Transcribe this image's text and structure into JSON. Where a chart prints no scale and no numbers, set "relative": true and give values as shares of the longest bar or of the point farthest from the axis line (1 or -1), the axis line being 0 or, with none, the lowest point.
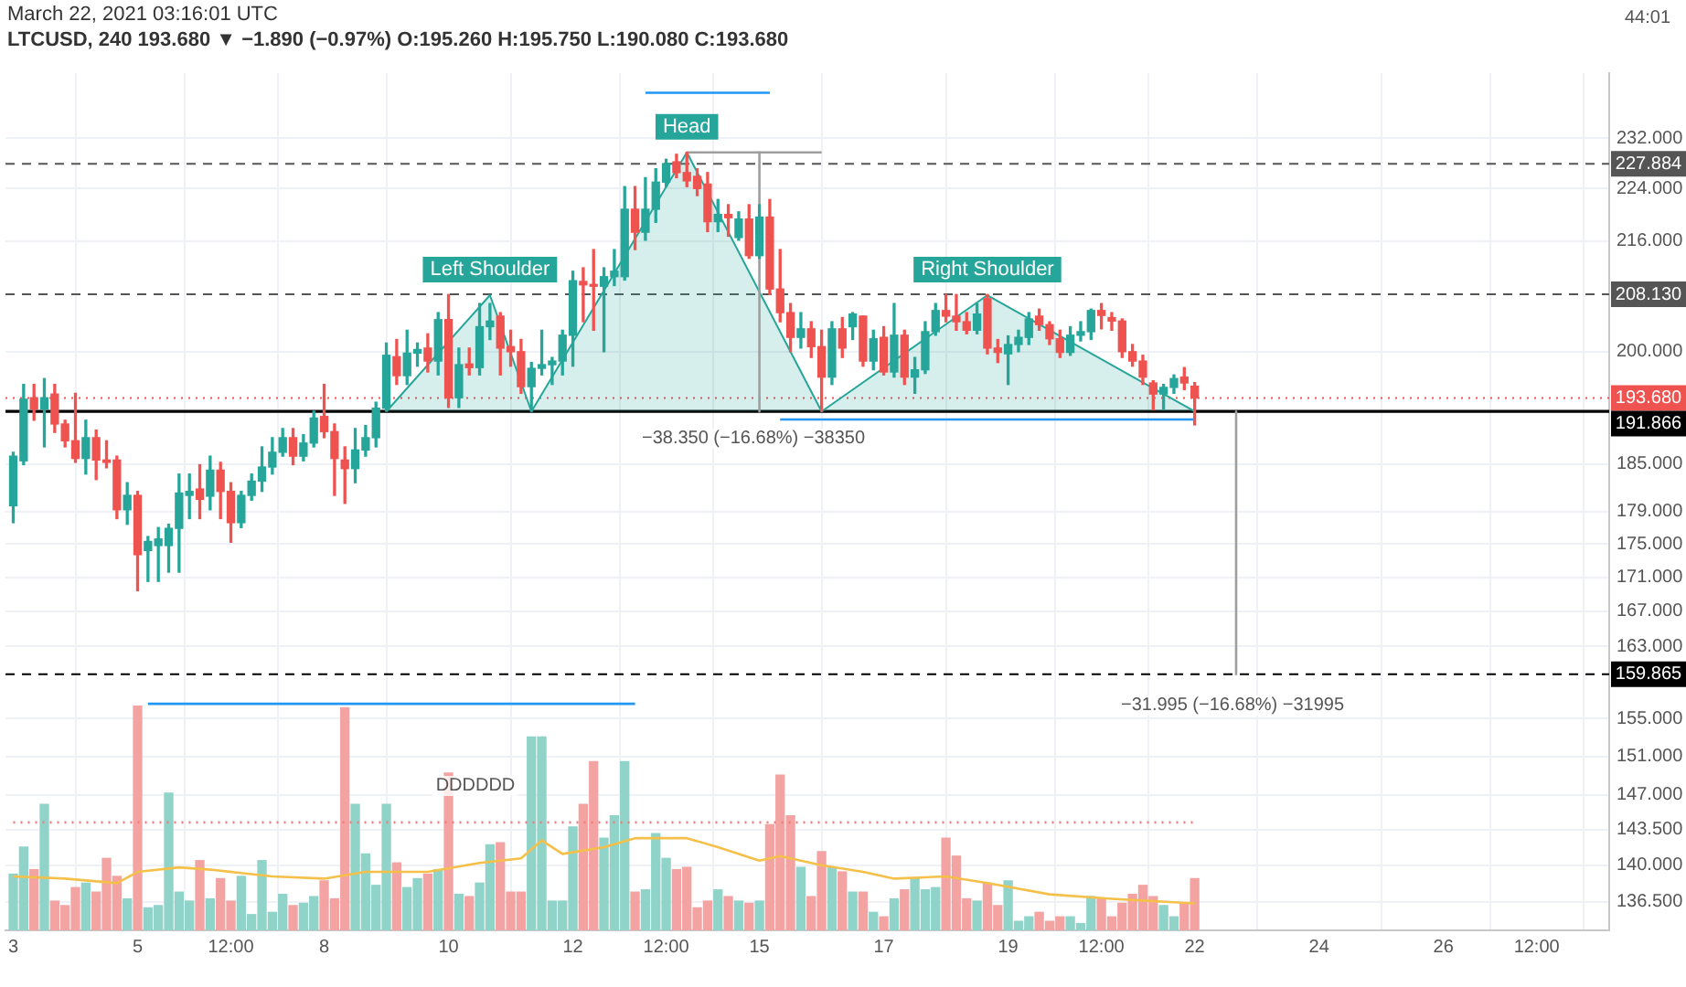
{
  "chart_data": [
    {
      "type": "candlestick",
      "title": "LTCUSD, 240 193.680 ▼ −1.890 (−0.97%) O:195.260 H:195.750 L:190.080 C:193.680",
      "subtitle": "March 22, 2021 03:16:01 UTC",
      "x": [
        "2021-03-03T00:00",
        "2021-03-03T04:00",
        "2021-03-03T08:00",
        "2021-03-03T12:00",
        "2021-03-03T16:00",
        "2021-03-03T20:00",
        "2021-03-04T00:00",
        "2021-03-04T04:00",
        "2021-03-04T08:00",
        "2021-03-04T12:00",
        "2021-03-04T16:00",
        "2021-03-04T20:00",
        "2021-03-05T00:00",
        "2021-03-05T04:00",
        "2021-03-05T08:00",
        "2021-03-05T12:00",
        "2021-03-05T16:00",
        "2021-03-05T20:00",
        "2021-03-06T00:00",
        "2021-03-06T04:00",
        "2021-03-06T08:00",
        "2021-03-06T12:00",
        "2021-03-06T16:00",
        "2021-03-06T20:00",
        "2021-03-07T00:00",
        "2021-03-07T04:00",
        "2021-03-07T08:00",
        "2021-03-07T12:00",
        "2021-03-07T16:00",
        "2021-03-07T20:00",
        "2021-03-08T00:00",
        "2021-03-08T04:00",
        "2021-03-08T08:00",
        "2021-03-08T12:00",
        "2021-03-08T16:00",
        "2021-03-08T20:00",
        "2021-03-09T00:00",
        "2021-03-09T04:00",
        "2021-03-09T08:00",
        "2021-03-09T12:00",
        "2021-03-09T16:00",
        "2021-03-09T20:00",
        "2021-03-10T00:00",
        "2021-03-10T04:00",
        "2021-03-10T08:00",
        "2021-03-10T12:00",
        "2021-03-10T16:00",
        "2021-03-10T20:00",
        "2021-03-11T00:00",
        "2021-03-11T04:00",
        "2021-03-11T08:00",
        "2021-03-11T12:00",
        "2021-03-11T16:00",
        "2021-03-11T20:00",
        "2021-03-12T00:00",
        "2021-03-12T04:00",
        "2021-03-12T08:00",
        "2021-03-12T12:00",
        "2021-03-12T16:00",
        "2021-03-12T20:00",
        "2021-03-13T00:00",
        "2021-03-13T04:00",
        "2021-03-13T08:00",
        "2021-03-13T12:00",
        "2021-03-13T16:00",
        "2021-03-13T20:00",
        "2021-03-14T00:00",
        "2021-03-14T04:00",
        "2021-03-14T08:00",
        "2021-03-14T12:00",
        "2021-03-14T16:00",
        "2021-03-14T20:00",
        "2021-03-15T00:00",
        "2021-03-15T04:00",
        "2021-03-15T08:00",
        "2021-03-15T12:00",
        "2021-03-15T16:00",
        "2021-03-15T20:00",
        "2021-03-16T00:00",
        "2021-03-16T04:00",
        "2021-03-16T08:00",
        "2021-03-16T12:00",
        "2021-03-16T16:00",
        "2021-03-16T20:00",
        "2021-03-17T00:00",
        "2021-03-17T04:00",
        "2021-03-17T08:00",
        "2021-03-17T12:00",
        "2021-03-17T16:00",
        "2021-03-17T20:00",
        "2021-03-18T00:00",
        "2021-03-18T04:00",
        "2021-03-18T08:00",
        "2021-03-18T12:00",
        "2021-03-18T16:00",
        "2021-03-18T20:00",
        "2021-03-19T00:00",
        "2021-03-19T04:00",
        "2021-03-19T08:00",
        "2021-03-19T12:00",
        "2021-03-19T16:00",
        "2021-03-19T20:00",
        "2021-03-20T00:00",
        "2021-03-20T04:00",
        "2021-03-20T08:00",
        "2021-03-20T12:00",
        "2021-03-20T16:00",
        "2021-03-20T20:00",
        "2021-03-21T00:00",
        "2021-03-21T04:00",
        "2021-03-21T08:00",
        "2021-03-21T12:00",
        "2021-03-21T16:00",
        "2021-03-21T20:00",
        "2021-03-22T00:00"
      ],
      "ohlc": [
        [
          179.7,
          186.5,
          177.6,
          186.0
        ],
        [
          185.4,
          195.5,
          184.9,
          193.5
        ],
        [
          193.7,
          195.5,
          190.7,
          192.2
        ],
        [
          192.2,
          196.3,
          187.2,
          193.7
        ],
        [
          194.2,
          195.5,
          189.1,
          190.2
        ],
        [
          190.2,
          190.7,
          187.2,
          188.0
        ],
        [
          188.0,
          194.3,
          185.2,
          185.7
        ],
        [
          185.7,
          190.7,
          183.7,
          188.4
        ],
        [
          188.4,
          189.4,
          183.0,
          185.5
        ],
        [
          185.5,
          188.0,
          184.5,
          185.2
        ],
        [
          185.5,
          186.0,
          178.1,
          179.2
        ],
        [
          179.2,
          182.6,
          177.4,
          181.0
        ],
        [
          181.0,
          181.5,
          169.4,
          173.7
        ],
        [
          174.2,
          175.9,
          170.5,
          175.3
        ],
        [
          174.8,
          177.0,
          170.5,
          175.6
        ],
        [
          174.8,
          177.4,
          171.6,
          176.9
        ],
        [
          176.9,
          183.7,
          171.6,
          181.3
        ],
        [
          181.0,
          183.7,
          178.1,
          181.5
        ],
        [
          181.8,
          184.9,
          178.1,
          180.5
        ],
        [
          180.9,
          186.0,
          179.2,
          184.2
        ],
        [
          184.2,
          185.2,
          178.1,
          181.5
        ],
        [
          181.5,
          182.6,
          175.2,
          177.6
        ],
        [
          177.6,
          181.5,
          177.0,
          181.0
        ],
        [
          181.0,
          183.7,
          180.4,
          182.8
        ],
        [
          182.8,
          187.2,
          181.5,
          184.6
        ],
        [
          184.6,
          188.4,
          183.7,
          186.5
        ],
        [
          186.5,
          189.6,
          186.0,
          188.4
        ],
        [
          188.4,
          189.6,
          184.9,
          186.0
        ],
        [
          186.0,
          188.8,
          185.4,
          187.7
        ],
        [
          187.7,
          191.9,
          187.2,
          191.0
        ],
        [
          191.2,
          195.5,
          188.4,
          189.2
        ],
        [
          189.2,
          190.2,
          181.0,
          185.7
        ],
        [
          185.5,
          187.2,
          180.0,
          184.4
        ],
        [
          184.4,
          189.6,
          182.6,
          186.8
        ],
        [
          186.8,
          190.0,
          186.0,
          188.4
        ],
        [
          188.4,
          193.1,
          187.2,
          192.3
        ],
        [
          192.3,
          201.2,
          191.9,
          199.5
        ],
        [
          199.3,
          201.7,
          195.5,
          196.7
        ],
        [
          196.7,
          203.0,
          195.5,
          199.8
        ],
        [
          199.8,
          201.2,
          198.0,
          200.3
        ],
        [
          200.5,
          202.5,
          197.2,
          198.7
        ],
        [
          198.7,
          205.5,
          196.8,
          204.5
        ],
        [
          204.5,
          208.1,
          192.4,
          193.7
        ],
        [
          193.7,
          200.5,
          192.4,
          198.2
        ],
        [
          198.3,
          200.5,
          196.8,
          197.8
        ],
        [
          197.8,
          206.8,
          196.8,
          203.5
        ],
        [
          203.5,
          206.8,
          201.7,
          204.3
        ],
        [
          205.0,
          205.5,
          196.8,
          200.5
        ],
        [
          200.7,
          203.0,
          198.0,
          200.0
        ],
        [
          200.0,
          201.7,
          194.3,
          195.2
        ],
        [
          195.2,
          198.5,
          191.9,
          197.7
        ],
        [
          197.7,
          203.0,
          196.8,
          198.2
        ],
        [
          198.2,
          199.2,
          195.5,
          198.7
        ],
        [
          198.7,
          203.0,
          196.8,
          202.3
        ],
        [
          202.3,
          211.5,
          198.0,
          210.1
        ],
        [
          210.0,
          212.0,
          204.2,
          209.5
        ],
        [
          209.5,
          214.7,
          203.0,
          209.3
        ],
        [
          209.3,
          212.0,
          200.0,
          210.7
        ],
        [
          210.7,
          214.7,
          209.4,
          211.5
        ],
        [
          210.7,
          224.3,
          210.2,
          220.8
        ],
        [
          220.8,
          224.3,
          214.7,
          217.3
        ],
        [
          217.3,
          225.7,
          216.1,
          220.8
        ],
        [
          220.8,
          227.1,
          218.8,
          225.0
        ],
        [
          225.0,
          228.6,
          224.3,
          227.9
        ],
        [
          228.2,
          229.4,
          225.7,
          226.5
        ],
        [
          226.5,
          229.7,
          224.3,
          225.2
        ],
        [
          225.9,
          227.1,
          222.9,
          224.0
        ],
        [
          224.7,
          226.5,
          217.4,
          218.9
        ],
        [
          218.9,
          222.3,
          217.4,
          220.0
        ],
        [
          220.0,
          221.5,
          216.7,
          219.5
        ],
        [
          216.5,
          220.4,
          216.1,
          219.3
        ],
        [
          219.3,
          221.5,
          213.4,
          213.8
        ],
        [
          213.8,
          221.5,
          213.4,
          219.6
        ],
        [
          219.6,
          222.3,
          208.1,
          208.9
        ],
        [
          208.9,
          214.7,
          204.2,
          205.5
        ],
        [
          205.5,
          206.8,
          200.0,
          202.0
        ],
        [
          202.0,
          205.5,
          200.5,
          203.2
        ],
        [
          203.2,
          204.2,
          199.2,
          200.7
        ],
        [
          200.7,
          203.0,
          191.9,
          196.5
        ],
        [
          196.5,
          204.2,
          195.5,
          203.2
        ],
        [
          203.2,
          204.8,
          199.2,
          200.5
        ],
        [
          203.5,
          205.5,
          201.7,
          205.3
        ],
        [
          205.0,
          205.0,
          198.0,
          198.7
        ],
        [
          198.7,
          203.0,
          197.5,
          201.8
        ],
        [
          202.0,
          203.5,
          196.8,
          197.2
        ],
        [
          197.2,
          206.8,
          196.5,
          202.3
        ],
        [
          202.3,
          203.0,
          195.5,
          196.5
        ],
        [
          196.5,
          199.2,
          194.3,
          197.5
        ],
        [
          197.5,
          204.2,
          197.0,
          202.8
        ],
        [
          202.8,
          206.8,
          202.3,
          205.8
        ],
        [
          205.8,
          208.1,
          204.2,
          205.0
        ],
        [
          205.0,
          208.1,
          203.0,
          204.2
        ],
        [
          204.2,
          205.5,
          202.5,
          203.0
        ],
        [
          203.0,
          206.8,
          202.5,
          205.3
        ],
        [
          207.5,
          208.1,
          199.7,
          200.5
        ],
        [
          200.5,
          201.7,
          198.5,
          199.9
        ],
        [
          199.7,
          202.2,
          195.5,
          201.0
        ],
        [
          201.0,
          203.0,
          200.0,
          202.0
        ],
        [
          202.0,
          205.5,
          201.0,
          204.6
        ],
        [
          205.0,
          206.0,
          203.0,
          203.8
        ],
        [
          203.8,
          204.2,
          201.0,
          201.8
        ],
        [
          201.8,
          203.0,
          199.2,
          199.9
        ],
        [
          199.9,
          203.5,
          199.5,
          202.3
        ],
        [
          202.3,
          204.2,
          201.5,
          202.8
        ],
        [
          202.8,
          206.0,
          201.7,
          205.8
        ],
        [
          205.8,
          206.8,
          203.2,
          205.1
        ],
        [
          204.8,
          205.5,
          203.0,
          204.3
        ],
        [
          204.3,
          204.6,
          199.2,
          200.0
        ],
        [
          200.0,
          201.0,
          198.0,
          198.7
        ],
        [
          198.7,
          199.5,
          195.5,
          196.5
        ],
        [
          195.7,
          196.0,
          192.1,
          194.2
        ],
        [
          194.2,
          195.5,
          192.1,
          195.1
        ],
        [
          195.1,
          196.8,
          194.3,
          196.3
        ],
        [
          196.5,
          197.8,
          194.8,
          195.7
        ],
        [
          195.26,
          195.75,
          190.08,
          193.68
        ]
      ],
      "colors": [
        "#26a69a",
        "#26a69a",
        "#ef5350",
        "#26a69a",
        "#ef5350",
        "#ef5350",
        "#ef5350",
        "#26a69a",
        "#ef5350",
        "#ef5350",
        "#ef5350",
        "#26a69a",
        "#ef5350",
        "#26a69a",
        "#26a69a",
        "#26a69a",
        "#26a69a",
        "#26a69a",
        "#ef5350",
        "#26a69a",
        "#ef5350",
        "#ef5350",
        "#26a69a",
        "#26a69a",
        "#26a69a",
        "#26a69a",
        "#26a69a",
        "#ef5350",
        "#26a69a",
        "#26a69a",
        "#ef5350",
        "#ef5350",
        "#ef5350",
        "#26a69a",
        "#26a69a",
        "#26a69a",
        "#26a69a",
        "#ef5350",
        "#26a69a",
        "#26a69a",
        "#ef5350",
        "#26a69a",
        "#ef5350",
        "#26a69a",
        "#ef5350",
        "#26a69a",
        "#26a69a",
        "#ef5350",
        "#ef5350",
        "#ef5350",
        "#26a69a",
        "#26a69a",
        "#26a69a",
        "#26a69a",
        "#26a69a",
        "#ef5350",
        "#ef5350",
        "#26a69a",
        "#26a69a",
        "#26a69a",
        "#ef5350",
        "#26a69a",
        "#26a69a",
        "#26a69a",
        "#ef5350",
        "#ef5350",
        "#ef5350",
        "#ef5350",
        "#26a69a",
        "#ef5350",
        "#26a69a",
        "#ef5350",
        "#26a69a",
        "#ef5350",
        "#ef5350",
        "#ef5350",
        "#26a69a",
        "#ef5350",
        "#ef5350",
        "#26a69a",
        "#ef5350",
        "#26a69a",
        "#ef5350",
        "#26a69a",
        "#ef5350",
        "#26a69a",
        "#ef5350",
        "#26a69a",
        "#26a69a",
        "#26a69a",
        "#ef5350",
        "#ef5350",
        "#ef5350",
        "#26a69a",
        "#ef5350",
        "#ef5350",
        "#26a69a",
        "#26a69a",
        "#26a69a",
        "#ef5350",
        "#ef5350",
        "#ef5350",
        "#26a69a",
        "#26a69a",
        "#26a69a",
        "#ef5350",
        "#ef5350",
        "#ef5350",
        "#ef5350",
        "#ef5350",
        "#ef5350",
        "#26a69a",
        "#26a69a",
        "#ef5350",
        "#ef5350"
      ],
      "series": [
        {
          "type": "area",
          "color": "#26a69a",
          "x": [
            "2021-03-09T00:00",
            "2021-03-10T16:00",
            "2021-03-11T08:00",
            "2021-03-13T20:00",
            "2021-03-16T00:00",
            "2021-03-18T16:00",
            "2021-03-22T00:00"
          ],
          "values": [
            191.866,
            208.0,
            191.866,
            229.7,
            191.866,
            208.0,
            191.866
          ]
        },
        {
          "type": "line",
          "color": "#2196f3",
          "x": [
            "2021-03-13T04:00",
            "2021-03-15T04:00"
          ],
          "values": [
            239.4,
            239.4
          ]
        },
        {
          "type": "line",
          "color": "#2196f3",
          "x": [
            "2021-03-15T08:00",
            "2021-03-22T00:00"
          ],
          "values": [
            190.8,
            190.8
          ]
        },
        {
          "type": "line",
          "color": "#2196f3",
          "x": [
            "2021-03-05T04:00",
            "2021-03-13T00:00"
          ],
          "values": [
            156.6,
            156.6
          ]
        },
        {
          "type": "line",
          "color": "#9e9e9e",
          "x": [
            "2021-03-13T20:00",
            "2021-03-16T00:00"
          ],
          "values": [
            229.7,
            229.7
          ]
        },
        {
          "type": "line",
          "color": "#9e9e9e",
          "x": [
            "2021-03-15T00:00",
            "2021-03-15T00:00"
          ],
          "values": [
            229.7,
            191.866
          ]
        },
        {
          "type": "line",
          "color": "#9e9e9e",
          "x": [
            "2021-03-22T16:00",
            "2021-03-22T16:00"
          ],
          "values": [
            191.866,
            159.865
          ]
        }
      ],
      "ref_lines": [
        {
          "axis": "y",
          "value": 227.884,
          "label": "227.884",
          "line_style": "dashed",
          "color": "#555555"
        },
        {
          "axis": "y",
          "value": 208.13,
          "label": "208.130",
          "line_style": "dashed",
          "color": "#555555"
        },
        {
          "axis": "y",
          "value": 193.68,
          "label": "193.680",
          "line_style": "dotted",
          "color": "#ef5350"
        },
        {
          "axis": "y",
          "value": 191.866,
          "label": "191.866",
          "line_style": "solid",
          "color": "#000000"
        },
        {
          "axis": "y",
          "value": 159.865,
          "label": "159.865",
          "line_style": "dashed",
          "color": "#000000"
        }
      ],
      "annotations": [
        {
          "text": "Head",
          "x": "2021-03-13T20:00",
          "y": 229.7
        },
        {
          "text": "Left Shoulder",
          "x": "2021-03-10T16:00",
          "y": 208.0
        },
        {
          "text": "Right Shoulder",
          "x": "2021-03-18T16:00",
          "y": 208.0
        },
        "44:01",
        "−38.350 (−16.68%) −38350",
        "−31.995 (−16.68%) −31995"
      ],
      "log": true,
      "xlim": [
        "2021-03-02T21:00",
        "2021-03-28T16:00"
      ],
      "xticks": [
        {
          "value": "2021-03-03",
          "label": null
        },
        {
          "value": "2021-03-05",
          "label": null
        },
        {
          "value": "2021-03-06T12:00",
          "label": null
        },
        {
          "value": "2021-03-08",
          "label": null
        },
        {
          "value": "2021-03-10",
          "label": null
        },
        {
          "value": "2021-03-12",
          "label": null
        },
        {
          "value": "2021-03-13T12:00",
          "label": null
        },
        {
          "value": "2021-03-15",
          "label": null
        },
        {
          "value": "2021-03-17",
          "label": null
        },
        {
          "value": "2021-03-19",
          "label": null
        },
        {
          "value": "2021-03-20T12:00",
          "label": null
        },
        {
          "value": "2021-03-22",
          "label": null
        },
        {
          "value": "2021-03-24",
          "label": null
        },
        {
          "value": "2021-03-26",
          "label": null
        },
        {
          "value": "2021-03-27T12:00",
          "label": null
        }
      ],
      "ylim": [
        133.8,
        242.7
      ],
      "yticks": [
        {
          "value": 232,
          "label": "232.000"
        },
        {
          "value": 224,
          "label": "224.000"
        },
        {
          "value": 216,
          "label": "216.000"
        },
        {
          "value": 200,
          "label": "200.000"
        },
        {
          "value": 185,
          "label": "185.000"
        },
        {
          "value": 179,
          "label": "179.000"
        },
        {
          "value": 175,
          "label": "175.000"
        },
        {
          "value": 171,
          "label": "171.000"
        },
        {
          "value": 167,
          "label": "167.000"
        },
        {
          "value": 163,
          "label": "163.000"
        },
        {
          "value": 155,
          "label": "155.000"
        },
        {
          "value": 151,
          "label": "151.000"
        },
        {
          "value": 147,
          "label": "147.000"
        },
        {
          "value": 143.5,
          "label": "143.500"
        },
        {
          "value": 140,
          "label": "140.000"
        },
        {
          "value": 136.5,
          "label": "136.500"
        }
      ],
      "grid": true,
      "tick_labels": "y",
      "legend": false
    },
    {
      "type": "bar",
      "relative": true,
      "tick_labels": "x",
      "x": [
        "2021-03-03T00:00",
        "2021-03-03T04:00",
        "2021-03-03T08:00",
        "2021-03-03T12:00",
        "2021-03-03T16:00",
        "2021-03-03T20:00",
        "2021-03-04T00:00",
        "2021-03-04T04:00",
        "2021-03-04T08:00",
        "2021-03-04T12:00",
        "2021-03-04T16:00",
        "2021-03-04T20:00",
        "2021-03-05T00:00",
        "2021-03-05T04:00",
        "2021-03-05T08:00",
        "2021-03-05T12:00",
        "2021-03-05T16:00",
        "2021-03-05T20:00",
        "2021-03-06T00:00",
        "2021-03-06T04:00",
        "2021-03-06T08:00",
        "2021-03-06T12:00",
        "2021-03-06T16:00",
        "2021-03-06T20:00",
        "2021-03-07T00:00",
        "2021-03-07T04:00",
        "2021-03-07T08:00",
        "2021-03-07T12:00",
        "2021-03-07T16:00",
        "2021-03-07T20:00",
        "2021-03-08T00:00",
        "2021-03-08T04:00",
        "2021-03-08T08:00",
        "2021-03-08T12:00",
        "2021-03-08T16:00",
        "2021-03-08T20:00",
        "2021-03-09T00:00",
        "2021-03-09T04:00",
        "2021-03-09T08:00",
        "2021-03-09T12:00",
        "2021-03-09T16:00",
        "2021-03-09T20:00",
        "2021-03-10T00:00",
        "2021-03-10T04:00",
        "2021-03-10T08:00",
        "2021-03-10T12:00",
        "2021-03-10T16:00",
        "2021-03-10T20:00",
        "2021-03-11T00:00",
        "2021-03-11T04:00",
        "2021-03-11T08:00",
        "2021-03-11T12:00",
        "2021-03-11T16:00",
        "2021-03-11T20:00",
        "2021-03-12T00:00",
        "2021-03-12T04:00",
        "2021-03-12T08:00",
        "2021-03-12T12:00",
        "2021-03-12T16:00",
        "2021-03-12T20:00",
        "2021-03-13T00:00",
        "2021-03-13T04:00",
        "2021-03-13T08:00",
        "2021-03-13T12:00",
        "2021-03-13T16:00",
        "2021-03-13T20:00",
        "2021-03-14T00:00",
        "2021-03-14T04:00",
        "2021-03-14T08:00",
        "2021-03-14T12:00",
        "2021-03-14T16:00",
        "2021-03-14T20:00",
        "2021-03-15T00:00",
        "2021-03-15T04:00",
        "2021-03-15T08:00",
        "2021-03-15T12:00",
        "2021-03-15T16:00",
        "2021-03-15T20:00",
        "2021-03-16T00:00",
        "2021-03-16T04:00",
        "2021-03-16T08:00",
        "2021-03-16T12:00",
        "2021-03-16T16:00",
        "2021-03-16T20:00",
        "2021-03-17T00:00",
        "2021-03-17T04:00",
        "2021-03-17T08:00",
        "2021-03-17T12:00",
        "2021-03-17T16:00",
        "2021-03-17T20:00",
        "2021-03-18T00:00",
        "2021-03-18T04:00",
        "2021-03-18T08:00",
        "2021-03-18T12:00",
        "2021-03-18T16:00",
        "2021-03-18T20:00",
        "2021-03-19T00:00",
        "2021-03-19T04:00",
        "2021-03-19T08:00",
        "2021-03-19T12:00",
        "2021-03-19T16:00",
        "2021-03-19T20:00",
        "2021-03-20T00:00",
        "2021-03-20T04:00",
        "2021-03-20T08:00",
        "2021-03-20T12:00",
        "2021-03-20T16:00",
        "2021-03-20T20:00",
        "2021-03-21T00:00",
        "2021-03-21T04:00",
        "2021-03-21T08:00",
        "2021-03-21T12:00",
        "2021-03-21T16:00",
        "2021-03-21T20:00",
        "2021-03-22T00:00"
      ],
      "values": [
        0.25,
        0.37,
        0.27,
        0.56,
        0.13,
        0.11,
        0.19,
        0.21,
        0.17,
        0.32,
        0.24,
        0.14,
        1,
        0.1,
        0.11,
        0.61,
        0.17,
        0.13,
        0.31,
        0.14,
        0.23,
        0.13,
        0.24,
        0.07,
        0.31,
        0.08,
        0.16,
        0.11,
        0.12,
        0.15,
        0.22,
        0.14,
        0.99,
        0.56,
        0.34,
        0.2,
        0.56,
        0.3,
        0.19,
        0.23,
        0.25,
        0.27,
        0.7,
        0.16,
        0.15,
        0.21,
        0.38,
        0.39,
        0.17,
        0.17,
        0.86,
        0.86,
        0.13,
        0.13,
        0.46,
        0.56,
        0.75,
        0.41,
        0.51,
        0.75,
        0.17,
        0.18,
        0.43,
        0.32,
        0.27,
        0.28,
        0.1,
        0.13,
        0.18,
        0.15,
        0.13,
        0.12,
        0.13,
        0.47,
        0.69,
        0.51,
        0.28,
        0.15,
        0.35,
        0.28,
        0.26,
        0.17,
        0.17,
        0.08,
        0.06,
        0.14,
        0.18,
        0.23,
        0.18,
        0.19,
        0.41,
        0.33,
        0.14,
        0.13,
        0.21,
        0.11,
        0.22,
        0.04,
        0.06,
        0.08,
        0.04,
        0.06,
        0.06,
        0.03,
        0.15,
        0.14,
        0.06,
        0.12,
        0.16,
        0.2,
        0.15,
        0.11,
        0.06,
        0.12,
        0.23
      ],
      "colors": [
        "#8fd3c9",
        "#8fd3c9",
        "#f4a3a3",
        "#8fd3c9",
        "#f4a3a3",
        "#f4a3a3",
        "#f4a3a3",
        "#8fd3c9",
        "#f4a3a3",
        "#f4a3a3",
        "#f4a3a3",
        "#8fd3c9",
        "#f4a3a3",
        "#8fd3c9",
        "#8fd3c9",
        "#8fd3c9",
        "#8fd3c9",
        "#8fd3c9",
        "#f4a3a3",
        "#8fd3c9",
        "#f4a3a3",
        "#f4a3a3",
        "#8fd3c9",
        "#8fd3c9",
        "#8fd3c9",
        "#8fd3c9",
        "#8fd3c9",
        "#f4a3a3",
        "#8fd3c9",
        "#8fd3c9",
        "#f4a3a3",
        "#f4a3a3",
        "#f4a3a3",
        "#8fd3c9",
        "#8fd3c9",
        "#8fd3c9",
        "#8fd3c9",
        "#f4a3a3",
        "#8fd3c9",
        "#8fd3c9",
        "#f4a3a3",
        "#8fd3c9",
        "#f4a3a3",
        "#8fd3c9",
        "#f4a3a3",
        "#8fd3c9",
        "#8fd3c9",
        "#f4a3a3",
        "#f4a3a3",
        "#f4a3a3",
        "#8fd3c9",
        "#8fd3c9",
        "#8fd3c9",
        "#8fd3c9",
        "#8fd3c9",
        "#f4a3a3",
        "#f4a3a3",
        "#8fd3c9",
        "#8fd3c9",
        "#8fd3c9",
        "#f4a3a3",
        "#8fd3c9",
        "#8fd3c9",
        "#8fd3c9",
        "#f4a3a3",
        "#f4a3a3",
        "#f4a3a3",
        "#f4a3a3",
        "#8fd3c9",
        "#f4a3a3",
        "#8fd3c9",
        "#f4a3a3",
        "#8fd3c9",
        "#f4a3a3",
        "#f4a3a3",
        "#f4a3a3",
        "#8fd3c9",
        "#f4a3a3",
        "#f4a3a3",
        "#8fd3c9",
        "#f4a3a3",
        "#8fd3c9",
        "#f4a3a3",
        "#8fd3c9",
        "#f4a3a3",
        "#8fd3c9",
        "#f4a3a3",
        "#8fd3c9",
        "#8fd3c9",
        "#8fd3c9",
        "#f4a3a3",
        "#f4a3a3",
        "#f4a3a3",
        "#8fd3c9",
        "#f4a3a3",
        "#f4a3a3",
        "#8fd3c9",
        "#8fd3c9",
        "#8fd3c9",
        "#f4a3a3",
        "#f4a3a3",
        "#f4a3a3",
        "#8fd3c9",
        "#8fd3c9",
        "#8fd3c9",
        "#f4a3a3",
        "#f4a3a3",
        "#f4a3a3",
        "#f4a3a3",
        "#f4a3a3",
        "#f4a3a3",
        "#8fd3c9",
        "#8fd3c9",
        "#f4a3a3",
        "#f4a3a3"
      ],
      "series": [
        {
          "type": "line",
          "color": "#f5c04a",
          "x": [
            "2021-03-03T00:00",
            "2021-03-03T20:00",
            "2021-03-04T16:00",
            "2021-03-05T00:00",
            "2021-03-05T16:00",
            "2021-03-06T04:00",
            "2021-03-07T04:00",
            "2021-03-08T00:00",
            "2021-03-08T16:00",
            "2021-03-09T16:00",
            "2021-03-10T12:00",
            "2021-03-11T04:00",
            "2021-03-11T12:00",
            "2021-03-11T20:00",
            "2021-03-12T12:00",
            "2021-03-13T00:00",
            "2021-03-13T20:00",
            "2021-03-14T08:00",
            "2021-03-15T00:00",
            "2021-03-15T08:00",
            "2021-03-16T00:00",
            "2021-03-16T16:00",
            "2021-03-17T04:00",
            "2021-03-18T00:00",
            "2021-03-18T16:00",
            "2021-03-19T16:00",
            "2021-03-20T16:00",
            "2021-03-22T00:00"
          ],
          "values": [
            0.24,
            0.23,
            0.21,
            0.26,
            0.28,
            0.27,
            0.24,
            0.23,
            0.26,
            0.26,
            0.3,
            0.32,
            0.4,
            0.34,
            0.37,
            0.41,
            0.41,
            0.37,
            0.31,
            0.33,
            0.29,
            0.26,
            0.23,
            0.24,
            0.21,
            0.16,
            0.14,
            0.12
          ]
        },
        {
          "type": "line",
          "color": "#f47c7c",
          "line_style": "dotted",
          "x": [
            "2021-03-03T00:00",
            "2021-03-22T00:00"
          ],
          "values": [
            0.48,
            0.48
          ]
        }
      ],
      "annotations": [
        "DDDDDD"
      ],
      "xlim": [
        "2021-03-02T21:00",
        "2021-03-28T16:00"
      ],
      "xticks": [
        {
          "value": "2021-03-03",
          "label": "3"
        },
        {
          "value": "2021-03-05",
          "label": "5"
        },
        {
          "value": "2021-03-06T12:00",
          "label": "12:00"
        },
        {
          "value": "2021-03-08",
          "label": "8"
        },
        {
          "value": "2021-03-10",
          "label": "10"
        },
        {
          "value": "2021-03-12",
          "label": "12"
        },
        {
          "value": "2021-03-13T12:00",
          "label": "12:00"
        },
        {
          "value": "2021-03-15",
          "label": "15"
        },
        {
          "value": "2021-03-17",
          "label": "17"
        },
        {
          "value": "2021-03-19",
          "label": "19"
        },
        {
          "value": "2021-03-20T12:00",
          "label": "12:00"
        },
        {
          "value": "2021-03-22",
          "label": "22"
        },
        {
          "value": "2021-03-24",
          "label": "24"
        },
        {
          "value": "2021-03-26",
          "label": "26"
        },
        {
          "value": "2021-03-27T12:00",
          "label": "12:00"
        }
      ],
      "grid": false,
      "legend": false
    }
  ]
}
